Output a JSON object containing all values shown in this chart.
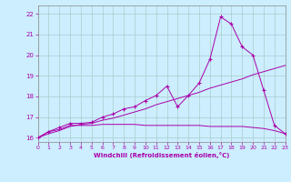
{
  "background_color": "#cceeff",
  "grid_color": "#aacccc",
  "line_color": "#aa00aa",
  "xlabel": "Windchill (Refroidissement éolien,°C)",
  "xlim": [
    0,
    23
  ],
  "ylim": [
    15.8,
    22.4
  ],
  "yticks": [
    16,
    17,
    18,
    19,
    20,
    21,
    22
  ],
  "xticks": [
    0,
    1,
    2,
    3,
    4,
    5,
    6,
    7,
    8,
    9,
    10,
    11,
    12,
    13,
    14,
    15,
    16,
    17,
    18,
    19,
    20,
    21,
    22,
    23
  ],
  "line1_x": [
    0,
    1,
    2,
    3,
    4,
    5,
    6,
    7,
    8,
    9,
    10,
    11,
    12,
    13,
    14,
    15,
    16,
    17,
    18,
    19,
    20,
    21,
    22,
    23
  ],
  "line1_y": [
    16.0,
    16.2,
    16.35,
    16.55,
    16.65,
    16.7,
    16.85,
    16.95,
    17.1,
    17.25,
    17.4,
    17.6,
    17.75,
    17.9,
    18.05,
    18.2,
    18.4,
    18.55,
    18.7,
    18.85,
    19.05,
    19.2,
    19.35,
    19.5
  ],
  "line2_x": [
    0,
    1,
    2,
    3,
    4,
    5,
    6,
    7,
    8,
    9,
    10,
    11,
    12,
    13,
    14,
    15,
    16,
    17,
    18,
    19,
    20,
    21,
    22,
    23
  ],
  "line2_y": [
    16.0,
    16.3,
    16.5,
    16.7,
    16.7,
    16.75,
    17.0,
    17.15,
    17.4,
    17.5,
    17.8,
    18.05,
    18.5,
    17.5,
    18.05,
    18.65,
    19.8,
    21.85,
    21.5,
    20.4,
    20.0,
    18.3,
    16.6,
    16.2
  ],
  "line3_x": [
    0,
    1,
    2,
    3,
    4,
    5,
    6,
    7,
    8,
    9,
    10,
    11,
    12,
    13,
    14,
    15,
    16,
    17,
    18,
    19,
    20,
    21,
    22,
    23
  ],
  "line3_y": [
    16.0,
    16.3,
    16.4,
    16.6,
    16.6,
    16.6,
    16.65,
    16.65,
    16.65,
    16.65,
    16.6,
    16.6,
    16.6,
    16.6,
    16.6,
    16.6,
    16.55,
    16.55,
    16.55,
    16.55,
    16.5,
    16.45,
    16.35,
    16.2
  ]
}
